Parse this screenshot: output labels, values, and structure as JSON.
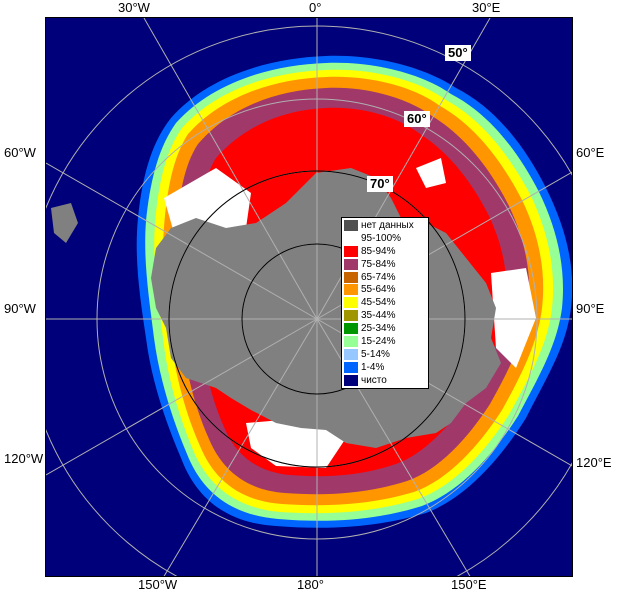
{
  "map": {
    "meridian_labels": {
      "top": [
        "30°W",
        "0°",
        "30°E"
      ],
      "bottom": [
        "150°W",
        "180°",
        "150°E"
      ],
      "left": [
        "60°W",
        "90°W",
        "120°W"
      ],
      "right": [
        "60°E",
        "90°E",
        "120°E"
      ]
    },
    "latitude_labels": [
      "50°",
      "60°",
      "70°"
    ],
    "colors": {
      "ocean": "#00007a",
      "land": "#808080",
      "no_data": "#505050",
      "grid": "#b0b0b0"
    }
  },
  "legend": {
    "items": [
      {
        "label": "нет данных",
        "color": "#505050"
      },
      {
        "label": "95-100%",
        "color": "#ffffff"
      },
      {
        "label": "85-94%",
        "color": "#ff0000"
      },
      {
        "label": "75-84%",
        "color": "#a0386a"
      },
      {
        "label": "65-74%",
        "color": "#c86400"
      },
      {
        "label": "55-64%",
        "color": "#ff9600"
      },
      {
        "label": "45-54%",
        "color": "#ffff00"
      },
      {
        "label": "35-44%",
        "color": "#a09600"
      },
      {
        "label": "25-34%",
        "color": "#009600"
      },
      {
        "label": "15-24%",
        "color": "#96ff96"
      },
      {
        "label": "5-14%",
        "color": "#96c8ff"
      },
      {
        "label": "1-4%",
        "color": "#0064ff"
      },
      {
        "label": "чисто",
        "color": "#00007a"
      }
    ]
  }
}
